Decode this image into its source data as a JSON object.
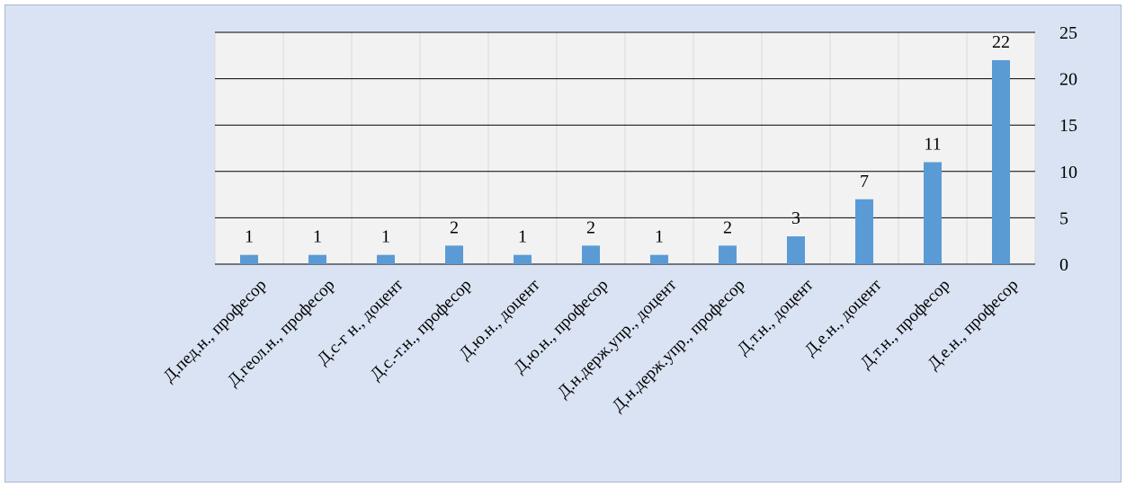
{
  "chart_data": {
    "type": "bar",
    "categories": [
      "Д.пед.н., професор",
      "Д.геол.н., професор",
      "Д.с-г н., доцент",
      "Д.с.-г.н., професор",
      "Д.ю.н., доцент",
      "Д.ю.н., професор",
      "Д.н.держ.упр., доцент",
      "Д.н.держ.упр., професор",
      "Д.т.н., доцент",
      "Д.е.н., доцент",
      "Д.т.н., професор",
      "Д.е.н., професор"
    ],
    "values": [
      1,
      1,
      1,
      2,
      1,
      2,
      1,
      2,
      3,
      7,
      11,
      22
    ],
    "data_labels": [
      "1",
      "1",
      "1",
      "2",
      "1",
      "2",
      "1",
      "2",
      "3",
      "7",
      "11",
      "22"
    ],
    "ylim": [
      0,
      25
    ],
    "yticks": [
      "0",
      "5",
      "10",
      "15",
      "20",
      "25"
    ],
    "y_axis_position": "right",
    "grid": true,
    "legend": "none",
    "colors": {
      "bar": "#5b9bd5",
      "background": "#dae3f3",
      "plot_area": "#f2f2f2",
      "gridline": "#000000"
    }
  }
}
